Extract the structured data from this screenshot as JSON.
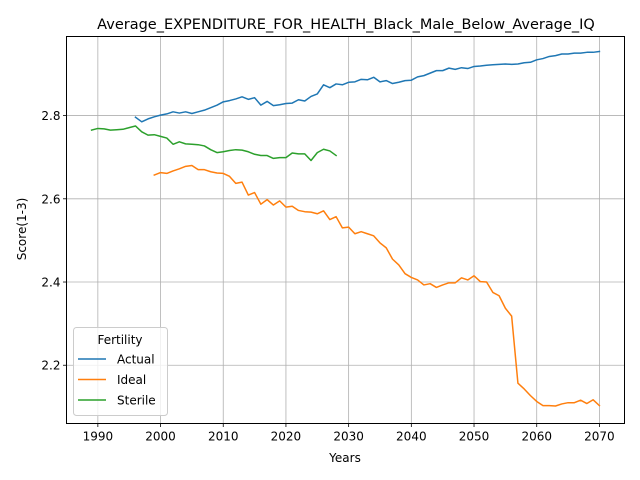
{
  "chart_data": {
    "type": "line",
    "title": "Average_EXPENDITURE_FOR_HEALTH_Black_Male_Below_Average_IQ",
    "xlabel": "Years",
    "ylabel": "Score(1-3)",
    "xlim": [
      1985,
      2074
    ],
    "ylim": [
      2.06,
      2.99
    ],
    "xticks": [
      1990,
      2000,
      2010,
      2020,
      2030,
      2040,
      2050,
      2060,
      2070
    ],
    "yticks": [
      2.2,
      2.4,
      2.6,
      2.8
    ],
    "grid": true,
    "legend": {
      "title": "Fertility",
      "placement": "lower-left"
    },
    "series": [
      {
        "name": "Actual",
        "color": "#1f77b4",
        "x": [
          1996,
          1997,
          1998,
          1999,
          2000,
          2001,
          2002,
          2003,
          2004,
          2005,
          2006,
          2007,
          2008,
          2009,
          2010,
          2011,
          2012,
          2013,
          2014,
          2015,
          2016,
          2017,
          2018,
          2019,
          2020,
          2021,
          2022,
          2023,
          2024,
          2025,
          2026,
          2027,
          2028,
          2029,
          2030,
          2031,
          2032,
          2033,
          2034,
          2035,
          2036,
          2037,
          2038,
          2039,
          2040,
          2041,
          2042,
          2043,
          2044,
          2045,
          2046,
          2047,
          2048,
          2049,
          2050,
          2051,
          2052,
          2053,
          2054,
          2055,
          2056,
          2057,
          2058,
          2059,
          2060,
          2061,
          2062,
          2063,
          2064,
          2065,
          2066,
          2067,
          2068,
          2069,
          2070
        ],
        "values": [
          2.796,
          2.785,
          2.792,
          2.797,
          2.801,
          2.804,
          2.809,
          2.806,
          2.809,
          2.805,
          2.809,
          2.813,
          2.819,
          2.825,
          2.833,
          2.836,
          2.84,
          2.845,
          2.839,
          2.843,
          2.825,
          2.834,
          2.824,
          2.826,
          2.829,
          2.83,
          2.838,
          2.835,
          2.846,
          2.852,
          2.874,
          2.867,
          2.876,
          2.874,
          2.88,
          2.881,
          2.887,
          2.886,
          2.892,
          2.881,
          2.884,
          2.877,
          2.88,
          2.884,
          2.885,
          2.893,
          2.896,
          2.902,
          2.908,
          2.908,
          2.914,
          2.911,
          2.915,
          2.913,
          2.918,
          2.919,
          2.921,
          2.922,
          2.923,
          2.924,
          2.923,
          2.924,
          2.927,
          2.928,
          2.934,
          2.937,
          2.942,
          2.944,
          2.948,
          2.948,
          2.95,
          2.95,
          2.952,
          2.952,
          2.954
        ]
      },
      {
        "name": "Ideal",
        "color": "#ff7f0e",
        "x": [
          1999,
          2000,
          2001,
          2002,
          2003,
          2004,
          2005,
          2006,
          2007,
          2008,
          2009,
          2010,
          2011,
          2012,
          2013,
          2014,
          2015,
          2016,
          2017,
          2018,
          2019,
          2020,
          2021,
          2022,
          2023,
          2024,
          2025,
          2026,
          2027,
          2028,
          2029,
          2030,
          2031,
          2032,
          2033,
          2034,
          2035,
          2036,
          2037,
          2038,
          2039,
          2040,
          2041,
          2042,
          2043,
          2044,
          2045,
          2046,
          2047,
          2048,
          2049,
          2050,
          2051,
          2052,
          2053,
          2054,
          2055,
          2056,
          2057,
          2058,
          2059,
          2060,
          2061,
          2062,
          2063,
          2064,
          2065,
          2066,
          2067,
          2068,
          2069,
          2070
        ],
        "values": [
          2.657,
          2.663,
          2.661,
          2.667,
          2.672,
          2.678,
          2.68,
          2.67,
          2.67,
          2.665,
          2.662,
          2.661,
          2.654,
          2.637,
          2.64,
          2.609,
          2.615,
          2.587,
          2.598,
          2.585,
          2.595,
          2.58,
          2.582,
          2.572,
          2.569,
          2.568,
          2.564,
          2.571,
          2.55,
          2.557,
          2.53,
          2.532,
          2.516,
          2.521,
          2.516,
          2.511,
          2.494,
          2.482,
          2.455,
          2.441,
          2.42,
          2.411,
          2.405,
          2.393,
          2.396,
          2.387,
          2.393,
          2.398,
          2.398,
          2.41,
          2.405,
          2.415,
          2.401,
          2.4,
          2.375,
          2.367,
          2.337,
          2.318,
          2.157,
          2.143,
          2.127,
          2.113,
          2.103,
          2.103,
          2.102,
          2.107,
          2.11,
          2.11,
          2.116,
          2.108,
          2.117,
          2.103
        ]
      },
      {
        "name": "Sterile",
        "color": "#2ca02c",
        "x": [
          1989,
          1990,
          1991,
          1992,
          1993,
          1994,
          1995,
          1996,
          1997,
          1998,
          1999,
          2000,
          2001,
          2002,
          2003,
          2004,
          2005,
          2006,
          2007,
          2008,
          2009,
          2010,
          2011,
          2012,
          2013,
          2014,
          2015,
          2016,
          2017,
          2018,
          2019,
          2020,
          2021,
          2022,
          2023,
          2024,
          2025,
          2026,
          2027,
          2028
        ],
        "values": [
          2.765,
          2.769,
          2.768,
          2.765,
          2.766,
          2.767,
          2.771,
          2.775,
          2.761,
          2.753,
          2.754,
          2.75,
          2.746,
          2.731,
          2.737,
          2.732,
          2.731,
          2.73,
          2.727,
          2.718,
          2.711,
          2.713,
          2.716,
          2.718,
          2.717,
          2.713,
          2.707,
          2.704,
          2.704,
          2.697,
          2.699,
          2.699,
          2.71,
          2.708,
          2.708,
          2.692,
          2.711,
          2.719,
          2.715,
          2.704
        ]
      }
    ]
  }
}
